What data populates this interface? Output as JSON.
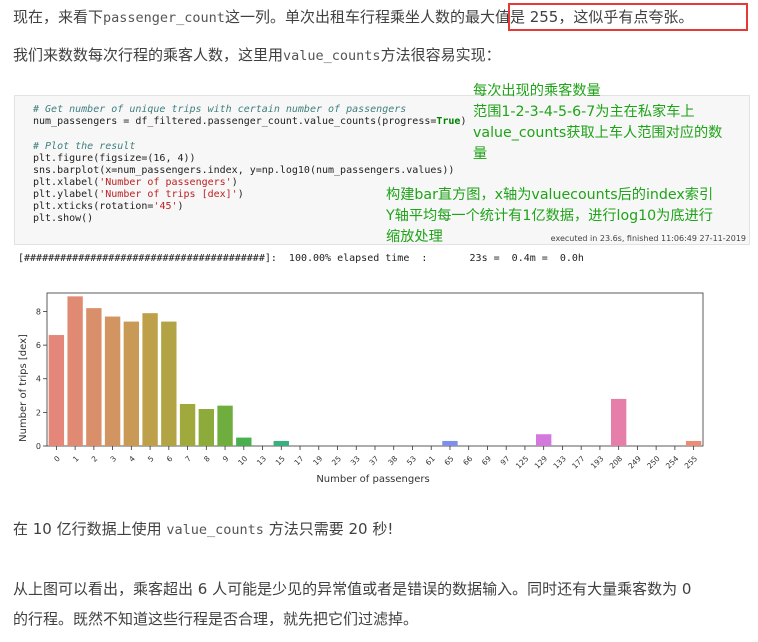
{
  "intro": {
    "p1_a": "现在，来看下",
    "p1_code": "passenger_count",
    "p1_b": "这一列。单次出租车行程乘坐人数的",
    "p1_c": "最大值是 255，这似乎有点夸张。",
    "p2_a": "我们来数数每次行程的乘客人数，这里用",
    "p2_code": "value_counts",
    "p2_b": "方法很容易实现："
  },
  "code": {
    "line1": "# Get number of unique trips with certain number of passengers",
    "line2_a": "num_passengers = df_filtered.passenger_count.value_counts(progress=",
    "line2_kw": "True",
    "line2_b": ")",
    "line3": "# Plot the result",
    "line4": "plt.figure(figsize=(16, 4))",
    "line5": "sns.barplot(x=num_passengers.index, y=np.log10(num_passengers.values))",
    "line6_a": "plt.xlabel(",
    "line6_s": "'Number of passengers'",
    "line6_b": ")",
    "line7_a": "plt.ylabel(",
    "line7_s": "'Number of trips [dex]'",
    "line7_b": ")",
    "line8_a": "plt.xticks(rotation=",
    "line8_s": "'45'",
    "line8_b": ")",
    "line9": "plt.show()",
    "executed": "executed in 23.6s, finished 11:06:49 27-11-2019",
    "progress": "[########################################]:  100.00% elapsed time  :       23s =  0.4m =  0.0h"
  },
  "annotations": {
    "a1": "每次出现的乘客数量",
    "a2": "范围1-2-3-4-5-6-7为主在私家车上",
    "a3": "value_counts获取上车人范围对应的数",
    "a4": "量",
    "b1": "构建bar直方图，x轴为valuecounts后的index索引",
    "b2": "Y轴平均每一个统计有1亿数据，进行log10为底进行",
    "b3": "缩放处理"
  },
  "outro": {
    "p3_a": "在 10 亿行数据上使用 ",
    "p3_code": "value_counts",
    "p3_b": " 方法只需要 20 秒!",
    "p4": "从上图可以看出，乘客超出 6 人可能是少见的异常值或者是错误的数据输入。同时还有大量乘客数为 0",
    "p5": "的行程。既然不知道这些行程是否合理，就先把它们过滤掉。"
  },
  "chart_data": {
    "type": "bar",
    "xlabel": "Number of passengers",
    "ylabel": "Number of trips [dex]",
    "ylim": [
      0,
      9.1
    ],
    "yticks": [
      0,
      2,
      4,
      6,
      8
    ],
    "categories": [
      "0",
      "1",
      "2",
      "3",
      "4",
      "5",
      "6",
      "7",
      "8",
      "9",
      "10",
      "13",
      "15",
      "17",
      "19",
      "25",
      "33",
      "37",
      "38",
      "53",
      "61",
      "65",
      "66",
      "69",
      "97",
      "125",
      "129",
      "133",
      "177",
      "193",
      "208",
      "249",
      "250",
      "254",
      "255"
    ],
    "values": [
      6.6,
      8.9,
      8.2,
      7.7,
      7.4,
      7.9,
      7.4,
      2.5,
      2.2,
      2.4,
      0.5,
      0.0,
      0.3,
      0.0,
      0.0,
      0.0,
      0.0,
      0.0,
      0.0,
      0.0,
      0.0,
      0.3,
      0.0,
      0.0,
      0.0,
      0.0,
      0.7,
      0.0,
      0.0,
      0.0,
      2.8,
      0.0,
      0.0,
      0.0,
      0.3
    ],
    "colors": [
      "#e4867a",
      "#e08a74",
      "#d9906a",
      "#d29460",
      "#c99a55",
      "#be9f4a",
      "#b2a445",
      "#9fa93c",
      "#8cab3b",
      "#6fae3e",
      "#4aaf4f",
      "#3db169",
      "#38b07f",
      "#38ae92",
      "#3aaca3",
      "#3caab2",
      "#3fa8bf",
      "#44a4cb",
      "#4da0d6",
      "#5a9be0",
      "#6a95e6",
      "#7f8eea",
      "#958aeb",
      "#a885ea",
      "#b981e8",
      "#c97ce3",
      "#d479dc",
      "#dc78d2",
      "#e17ac5",
      "#e47cb8",
      "#e57fa9",
      "#e6839b",
      "#e6868e",
      "#e68a83",
      "#e78d7a"
    ]
  }
}
